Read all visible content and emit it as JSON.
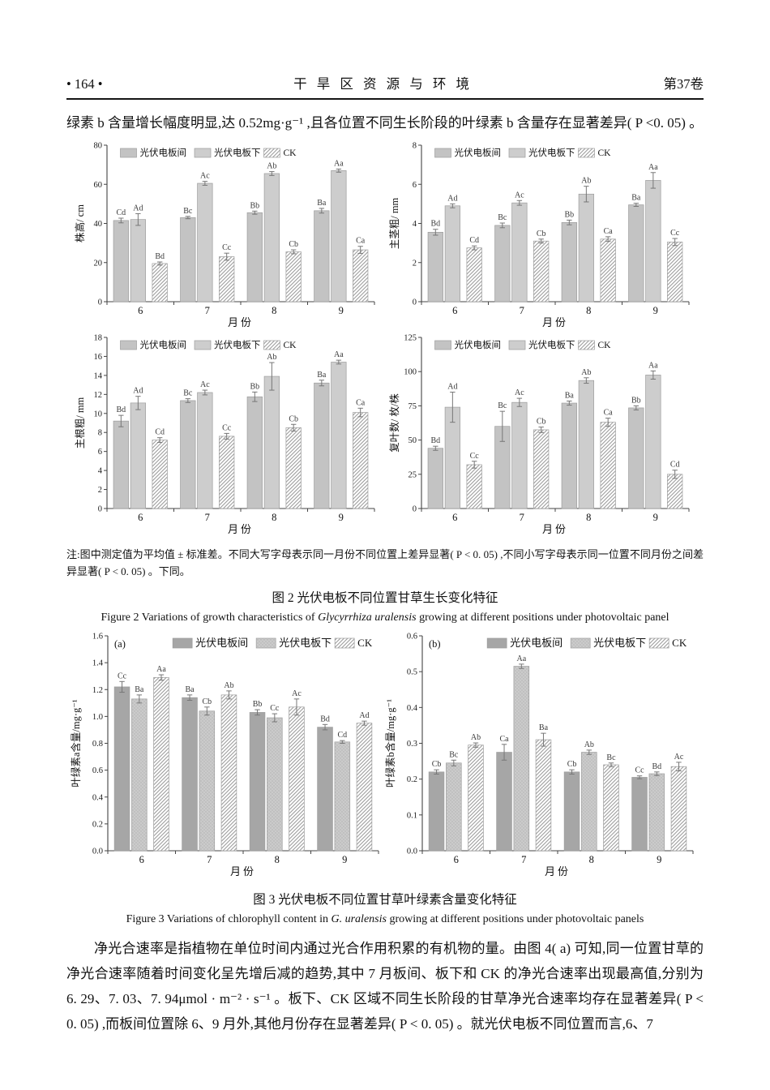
{
  "header": {
    "page_number": "• 164 •",
    "journal": "干 旱 区 资 源 与 环 境",
    "volume": "第37卷"
  },
  "paragraphs": {
    "chlorophyll_b": "绿素 b 含量增长幅度明显,达 0.52mg·g⁻¹ ,且各位置不同生长阶段的叶绿素 b 含量存在显著差异( P <0. 05) 。",
    "photosynthesis": "净光合速率是指植物在单位时间内通过光合作用积累的有机物的量。由图 4( a) 可知,同一位置甘草的净光合速率随着时间变化呈先增后减的趋势,其中 7 月板间、板下和 CK 的净光合速率出现最高值,分别为 6. 29、7. 03、7. 94μmol · m⁻² · s⁻¹ 。板下、CK 区域不同生长阶段的甘草净光合速率均存在显著差异( P < 0. 05) ,而板间位置除 6、9 月外,其他月份存在显著差异( P < 0. 05) 。就光伏电板不同位置而言,6、7"
  },
  "figure2": {
    "note": "注:图中测定值为平均值 ± 标准差。不同大写字母表示同一月份不同位置上差异显著( P < 0. 05) ,不同小写字母表示同一位置不同月份之间差异显著( P < 0. 05) 。下同。",
    "caption_cn": "图 2 光伏电板不同位置甘草生长变化特征",
    "caption_en_pre": "Figure 2 Variations of growth characteristics of ",
    "caption_en_italic": "Glycyrrhiza uralensis",
    "caption_en_post": " growing at different positions under photovoltaic panel"
  },
  "figure3": {
    "caption_cn": "图 3   光伏电板不同位置甘草叶绿素含量变化特征",
    "caption_en_pre": "Figure 3 Variations of chlorophyll content in ",
    "caption_en_italic": "G.  uralensis",
    "caption_en_post": " growing at different positions under photovoltaic panels"
  },
  "colors": {
    "bar_between_panels": "#c3c3c3",
    "bar_under_panels": "#cdcdcd",
    "bar_between_panels_fig3": "#a6a6a6",
    "bar_under_panels_fig3": "#cbcbcb",
    "hatch_stroke": "#9a9a9a",
    "error_bar": "#777777",
    "axis": "#444444"
  },
  "chart_data": [
    {
      "type": "bar",
      "panel": "",
      "title": "",
      "ylabel": "株高/ cm",
      "xlabel": "月份",
      "ylim": [
        0,
        80
      ],
      "ytick_step": 20,
      "ytick_decimals": 0,
      "categories": [
        "6",
        "7",
        "8",
        "9"
      ],
      "bar_colors": [
        "#c3c3c3",
        "#cdcdcd"
      ],
      "dot_texture": false,
      "series": [
        {
          "name": "光伏电板间",
          "values": [
            41.5,
            43,
            45.5,
            46.5
          ],
          "errors": [
            1.2,
            0.6,
            0.8,
            1.2
          ],
          "labels": [
            "Cd",
            "Bc",
            "Bb",
            "Ba"
          ]
        },
        {
          "name": "光伏电板下",
          "values": [
            42,
            60.5,
            65.5,
            67
          ],
          "errors": [
            3,
            1,
            1,
            0.8
          ],
          "labels": [
            "Ad",
            "Ac",
            "Ab",
            "Aa"
          ]
        },
        {
          "name": "CK",
          "values": [
            19.5,
            23,
            25.5,
            26.5
          ],
          "errors": [
            0.8,
            1.8,
            1,
            1.8
          ],
          "labels": [
            "Bd",
            "Cc",
            "Cb",
            "Ca"
          ]
        }
      ]
    },
    {
      "type": "bar",
      "panel": "",
      "title": "",
      "ylabel": "主茎粗/ mm",
      "xlabel": "月份",
      "ylim": [
        0,
        8
      ],
      "ytick_step": 2,
      "ytick_decimals": 0,
      "categories": [
        "6",
        "7",
        "8",
        "9"
      ],
      "bar_colors": [
        "#c3c3c3",
        "#cdcdcd"
      ],
      "dot_texture": false,
      "series": [
        {
          "name": "光伏电板间",
          "values": [
            3.55,
            3.9,
            4.05,
            4.95
          ],
          "errors": [
            0.15,
            0.12,
            0.12,
            0.08
          ],
          "labels": [
            "Bd",
            "Bc",
            "Bb",
            "Ba"
          ]
        },
        {
          "name": "光伏电板下",
          "values": [
            4.9,
            5.05,
            5.5,
            6.2
          ],
          "errors": [
            0.1,
            0.12,
            0.4,
            0.4
          ],
          "labels": [
            "Ad",
            "Ac",
            "Ab",
            "Aa"
          ]
        },
        {
          "name": "CK",
          "values": [
            2.75,
            3.1,
            3.2,
            3.05
          ],
          "errors": [
            0.1,
            0.1,
            0.12,
            0.18
          ],
          "labels": [
            "Cd",
            "Cb",
            "Ca",
            "Cc"
          ]
        }
      ]
    },
    {
      "type": "bar",
      "panel": "",
      "title": "",
      "ylabel": "主根粗/ mm",
      "xlabel": "月份",
      "ylim": [
        0,
        18
      ],
      "ytick_step": 2,
      "ytick_decimals": 0,
      "categories": [
        "6",
        "7",
        "8",
        "9"
      ],
      "bar_colors": [
        "#c3c3c3",
        "#cdcdcd"
      ],
      "dot_texture": false,
      "series": [
        {
          "name": "光伏电板间",
          "values": [
            9.2,
            11.35,
            11.75,
            13.2
          ],
          "errors": [
            0.6,
            0.2,
            0.5,
            0.3
          ],
          "labels": [
            "Bd",
            "Bc",
            "Bb",
            "Ba"
          ]
        },
        {
          "name": "光伏电板下",
          "values": [
            11.1,
            12.2,
            13.9,
            15.4
          ],
          "errors": [
            0.7,
            0.25,
            1.45,
            0.2
          ],
          "labels": [
            "Ad",
            "Ac",
            "Ab",
            "Aa"
          ]
        },
        {
          "name": "CK",
          "values": [
            7.2,
            7.6,
            8.5,
            10.1
          ],
          "errors": [
            0.25,
            0.3,
            0.35,
            0.45
          ],
          "labels": [
            "Cd",
            "Cc",
            "Cb",
            "Ca"
          ]
        }
      ]
    },
    {
      "type": "bar",
      "panel": "",
      "title": "",
      "ylabel": "复叶数/ 枚/株",
      "xlabel": "月份",
      "ylim": [
        0,
        125
      ],
      "ytick_step": 25,
      "ytick_decimals": 0,
      "categories": [
        "6",
        "7",
        "8",
        "9"
      ],
      "bar_colors": [
        "#c3c3c3",
        "#cdcdcd"
      ],
      "dot_texture": false,
      "series": [
        {
          "name": "光伏电板间",
          "values": [
            44,
            60,
            77,
            73.5
          ],
          "errors": [
            1.5,
            11,
            1.5,
            1.5
          ],
          "labels": [
            "Bd",
            "Bc",
            "Ba",
            "Bb"
          ]
        },
        {
          "name": "光伏电板下",
          "values": [
            74,
            77.5,
            93.5,
            97.5
          ],
          "errors": [
            11,
            3,
            2,
            3
          ],
          "labels": [
            "Ad",
            "Ac",
            "Ab",
            "Aa"
          ]
        },
        {
          "name": "CK",
          "values": [
            32,
            57.5,
            63,
            25
          ],
          "errors": [
            2.5,
            2,
            3,
            3
          ],
          "labels": [
            "Cc",
            "Cb",
            "Ca",
            "Cd"
          ]
        }
      ]
    },
    {
      "type": "bar",
      "panel": "(a)",
      "title": "",
      "ylabel": "叶绿素a含量/mg·g⁻¹",
      "xlabel": "月份",
      "ylim": [
        0,
        1.6
      ],
      "ytick_step": 0.2,
      "ytick_decimals": 1,
      "categories": [
        "6",
        "7",
        "8",
        "9"
      ],
      "bar_colors": [
        "#a6a6a6",
        "#cbcbcb"
      ],
      "dot_texture": true,
      "series": [
        {
          "name": "光伏电板间",
          "values": [
            1.22,
            1.14,
            1.03,
            0.92
          ],
          "errors": [
            0.04,
            0.02,
            0.02,
            0.02
          ],
          "labels": [
            "Cc",
            "Ba",
            "Bb",
            "Bd"
          ]
        },
        {
          "name": "光伏电板下",
          "values": [
            1.13,
            1.04,
            0.99,
            0.81
          ],
          "errors": [
            0.03,
            0.03,
            0.03,
            0.01
          ],
          "labels": [
            "Ba",
            "Cb",
            "Cc",
            "Cd"
          ]
        },
        {
          "name": "CK",
          "values": [
            1.29,
            1.16,
            1.07,
            0.95
          ],
          "errors": [
            0.02,
            0.03,
            0.06,
            0.015
          ],
          "labels": [
            "Aa",
            "Ab",
            "Ac",
            "Ad"
          ]
        }
      ]
    },
    {
      "type": "bar",
      "panel": "(b)",
      "title": "",
      "ylabel": "叶绿素b含量/mg·g⁻¹",
      "xlabel": "月份",
      "ylim": [
        0,
        0.6
      ],
      "ytick_step": 0.1,
      "ytick_decimals": 1,
      "categories": [
        "6",
        "7",
        "8",
        "9"
      ],
      "bar_colors": [
        "#a6a6a6",
        "#cbcbcb"
      ],
      "dot_texture": true,
      "series": [
        {
          "name": "光伏电板间",
          "values": [
            0.22,
            0.275,
            0.22,
            0.205
          ],
          "errors": [
            0.006,
            0.022,
            0.006,
            0.004
          ],
          "labels": [
            "Cb",
            "Ca",
            "Cb",
            "Cc"
          ]
        },
        {
          "name": "光伏电板下",
          "values": [
            0.245,
            0.515,
            0.275,
            0.215
          ],
          "errors": [
            0.008,
            0.006,
            0.006,
            0.005
          ],
          "labels": [
            "Bc",
            "Aa",
            "Ab",
            "Bd"
          ]
        },
        {
          "name": "CK",
          "values": [
            0.295,
            0.31,
            0.24,
            0.235
          ],
          "errors": [
            0.006,
            0.018,
            0.005,
            0.012
          ],
          "labels": [
            "Ab",
            "Ba",
            "Bc",
            "Ac"
          ]
        }
      ]
    }
  ]
}
